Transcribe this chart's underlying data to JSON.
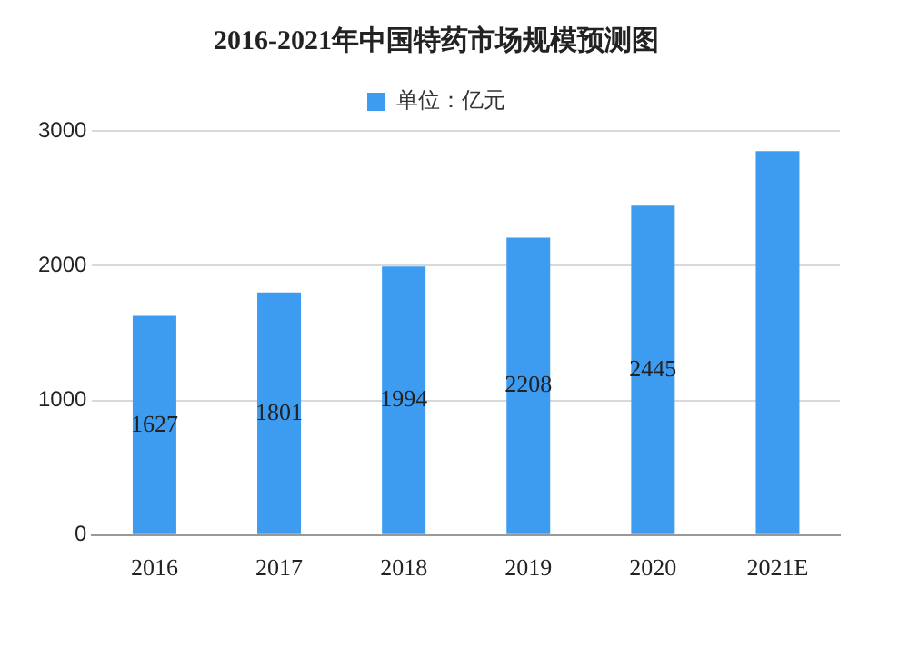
{
  "chart_data": {
    "type": "bar",
    "title": "2016-2021年中国特药市场规模预测图",
    "categories": [
      "2016",
      "2017",
      "2018",
      "2019",
      "2020",
      "2021E"
    ],
    "series": [
      {
        "name": "单位：亿元",
        "color": "#3d9cf0",
        "values": [
          1627,
          1801,
          1994,
          2208,
          2445,
          2850
        ],
        "value_labels": [
          "1627",
          "1801",
          "1994",
          "2208",
          "2445",
          null
        ]
      }
    ],
    "ylim": [
      0,
      3000
    ],
    "yticks": [
      0,
      1000,
      2000,
      3000
    ],
    "grid": "y",
    "legend": "top"
  }
}
